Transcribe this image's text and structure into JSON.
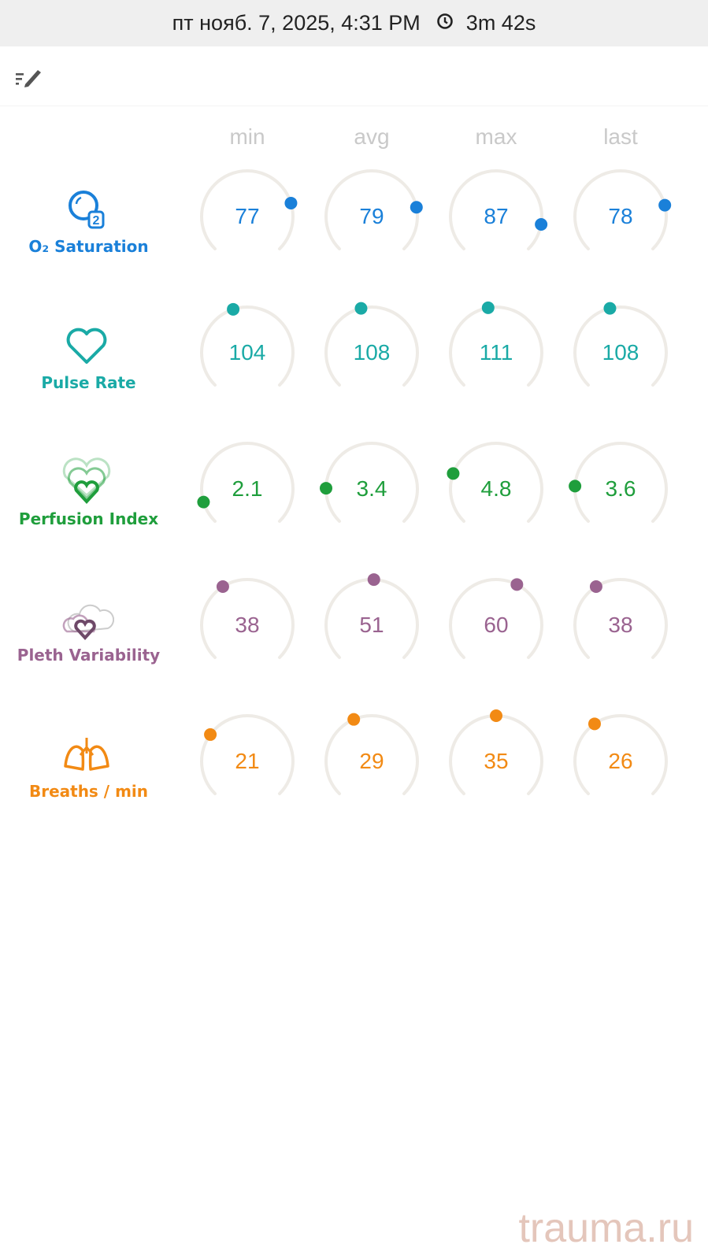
{
  "status": {
    "datetime": "пт нояб. 7, 2025, 4:31 PM",
    "clock_icon": "clock-icon",
    "duration": "3m 42s"
  },
  "toolbar": {
    "edit_icon": "edit-list-icon"
  },
  "columns": [
    "min",
    "avg",
    "max",
    "last"
  ],
  "track_color": "#eeebe6",
  "rows": [
    {
      "id": "o2",
      "label": "O₂ Saturation",
      "icon": "o2-bubble-icon",
      "color": "#1a80d9",
      "range": [
        0,
        100
      ],
      "values": [
        "77",
        "79",
        "87",
        "78"
      ]
    },
    {
      "id": "pulse",
      "label": "Pulse Rate",
      "icon": "heart-icon",
      "color": "#1aaaa6",
      "range": [
        0,
        240
      ],
      "values": [
        "104",
        "108",
        "111",
        "108"
      ]
    },
    {
      "id": "perfusion",
      "label": "Perfusion Index",
      "icon": "layered-hearts-icon",
      "color": "#1f9e3c",
      "range": [
        0,
        20
      ],
      "values": [
        "2.1",
        "3.4",
        "4.8",
        "3.6"
      ]
    },
    {
      "id": "pleth",
      "label": "Pleth Variability",
      "icon": "cloud-heart-icon",
      "color": "#9a6390",
      "range": [
        0,
        100
      ],
      "values": [
        "38",
        "51",
        "60",
        "38"
      ]
    },
    {
      "id": "breaths",
      "label": "Breaths / min",
      "icon": "lungs-icon",
      "color": "#f28a14",
      "range": [
        0,
        70
      ],
      "values": [
        "21",
        "29",
        "35",
        "26"
      ]
    }
  ],
  "watermark": "trauma.ru"
}
